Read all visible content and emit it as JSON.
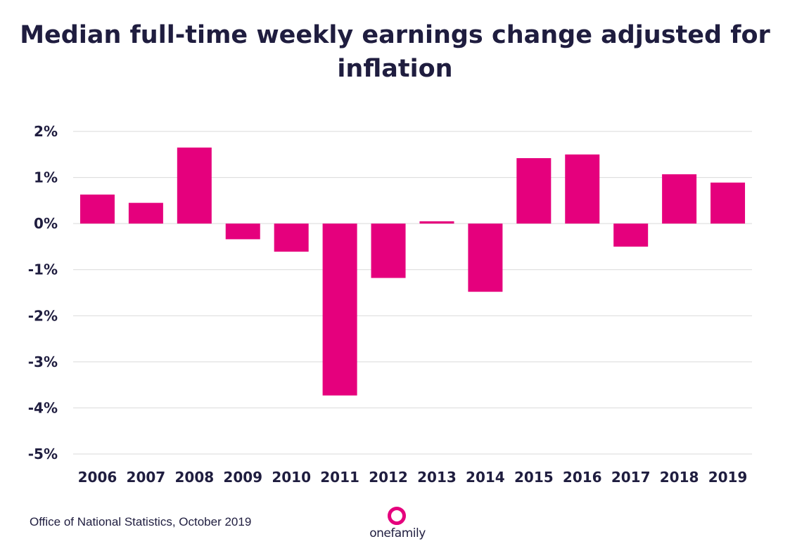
{
  "title": "Median full-time weekly earnings change adjusted for inflation",
  "source": "Office of National Statistics, October 2019",
  "logo": {
    "text": "onefamily",
    "icon": "ring-icon",
    "color": "#e5007d"
  },
  "colors": {
    "bar": "#e5007d",
    "text": "#1f1d3f",
    "grid": "#d9d9d9"
  },
  "chart_data": {
    "type": "bar",
    "title": "Median full-time weekly earnings change adjusted for inflation",
    "xlabel": "",
    "ylabel": "",
    "categories": [
      "2006",
      "2007",
      "2008",
      "2009",
      "2010",
      "2011",
      "2012",
      "2013",
      "2014",
      "2015",
      "2016",
      "2017",
      "2018",
      "2019"
    ],
    "values": [
      0.63,
      0.45,
      1.65,
      -0.34,
      -0.61,
      -3.73,
      -1.18,
      0.05,
      -1.48,
      1.42,
      1.5,
      -0.5,
      1.07,
      0.89
    ],
    "yticks": [
      2,
      1,
      0,
      -1,
      -2,
      -3,
      -4,
      -5
    ],
    "ytick_labels": [
      "2%",
      "1%",
      "0%",
      "-1%",
      "-2%",
      "-3%",
      "-4%",
      "-5%"
    ],
    "ylim": [
      -5,
      2
    ],
    "grid": true,
    "legend": "none"
  }
}
